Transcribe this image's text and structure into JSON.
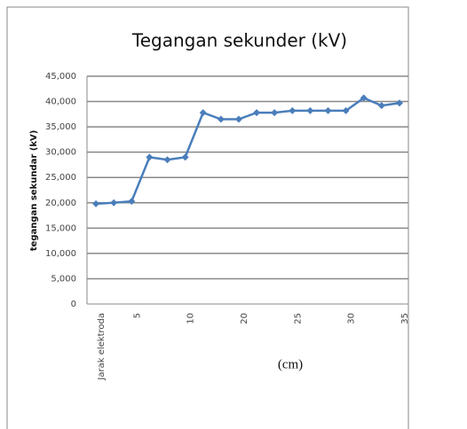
{
  "chart_data": {
    "type": "line",
    "title": "Tegangan sekunder (kV)",
    "y_label": "tegangan sekundar (kV)",
    "x_label": "(cm)",
    "categories": [
      "Jarak elektroda",
      null,
      "5",
      null,
      null,
      "10",
      null,
      null,
      "20",
      null,
      null,
      "25",
      null,
      null,
      "30",
      null,
      null,
      "35"
    ],
    "series": [
      {
        "name": "tegangan sekunder",
        "color": "#4a7ebb",
        "values": [
          19800,
          20000,
          20300,
          29000,
          28500,
          29000,
          37800,
          36500,
          36500,
          37800,
          37800,
          38200,
          38200,
          38200,
          38200,
          40700,
          39200,
          39700
        ]
      }
    ],
    "ylim": [
      0,
      45000
    ],
    "yticks": [
      0,
      {
        "value": 5000,
        "label": "5,000"
      },
      {
        "value": 10000,
        "label": "10,000"
      },
      {
        "value": 15000,
        "label": "15,000"
      },
      {
        "value": 20000,
        "label": "20,000"
      },
      {
        "value": 25000,
        "label": "25,000"
      },
      {
        "value": 30000,
        "label": "30,000"
      },
      {
        "value": 35000,
        "label": "35,000"
      },
      {
        "value": 40000,
        "label": "40,000"
      },
      {
        "value": 45000,
        "label": "45,000"
      }
    ],
    "grid": true
  }
}
